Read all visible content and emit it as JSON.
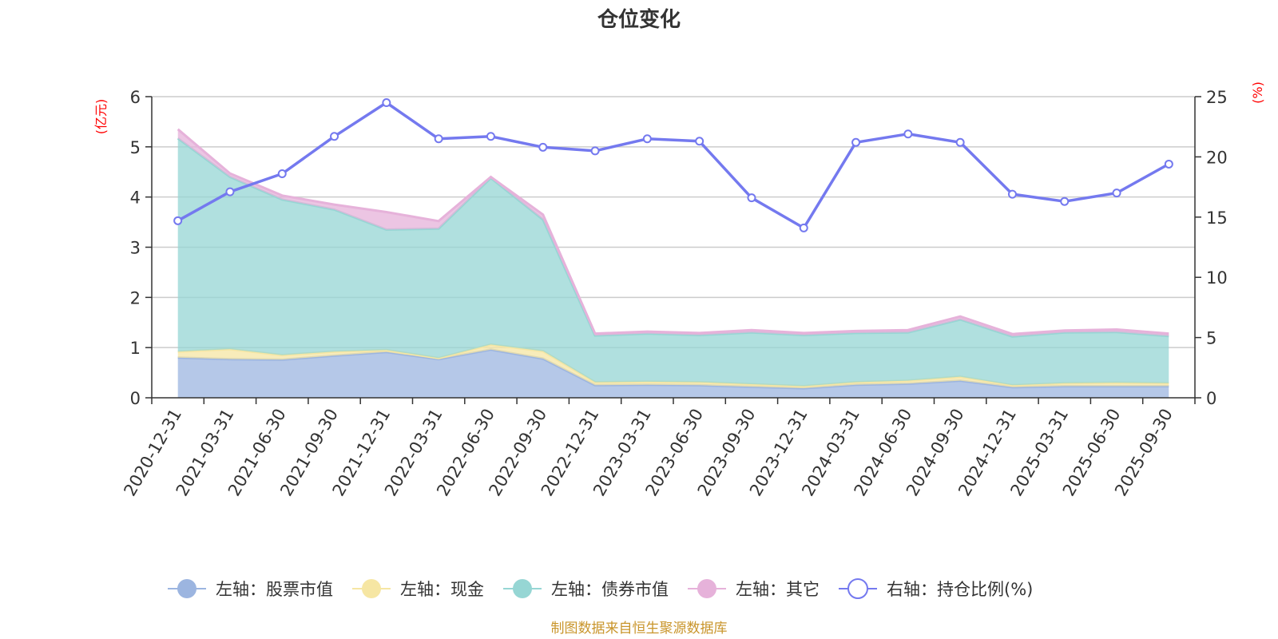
{
  "title": "仓位变化",
  "source": "制图数据来自恒生聚源数据库",
  "left_unit": "(亿元)",
  "right_unit": "(%)",
  "colors": {
    "stock": "#9cb5e0",
    "cash": "#f6e6a3",
    "bond": "#96d6d4",
    "other": "#e6b2da",
    "ratio": "#7479ef",
    "grid": "#cccccc",
    "axis": "#333333"
  },
  "legend": [
    {
      "key": "stock",
      "label": "左轴：股票市值"
    },
    {
      "key": "cash",
      "label": "左轴：现金"
    },
    {
      "key": "bond",
      "label": "左轴：债券市值"
    },
    {
      "key": "other",
      "label": "左轴：其它"
    },
    {
      "key": "ratio",
      "label": "右轴：持仓比例(%)"
    }
  ],
  "chart_data": {
    "type": "area",
    "categories": [
      "2020-12-31",
      "2021-03-31",
      "2021-06-30",
      "2021-09-30",
      "2021-12-31",
      "2022-03-31",
      "2022-06-30",
      "2022-09-30",
      "2022-12-31",
      "2023-03-31",
      "2023-06-30",
      "2023-09-30",
      "2023-12-31",
      "2024-03-31",
      "2024-06-30",
      "2024-09-30",
      "2024-12-31",
      "2025-03-31",
      "2025-06-30",
      "2025-09-30"
    ],
    "y_left": {
      "min": 0,
      "max": 6,
      "ticks": [
        0,
        1,
        2,
        3,
        4,
        5,
        6
      ]
    },
    "y_right": {
      "min": 0,
      "max": 25,
      "ticks": [
        0,
        5,
        10,
        15,
        20,
        25
      ]
    },
    "stacked_series": [
      {
        "key": "stock",
        "name": "左轴：股票市值",
        "values": [
          0.8,
          0.77,
          0.76,
          0.84,
          0.91,
          0.77,
          0.96,
          0.78,
          0.25,
          0.26,
          0.25,
          0.22,
          0.19,
          0.26,
          0.28,
          0.34,
          0.21,
          0.23,
          0.23,
          0.23
        ]
      },
      {
        "key": "cash",
        "name": "左轴：现金",
        "values": [
          0.12,
          0.2,
          0.09,
          0.08,
          0.04,
          0.02,
          0.1,
          0.15,
          0.06,
          0.06,
          0.06,
          0.05,
          0.04,
          0.05,
          0.06,
          0.08,
          0.04,
          0.06,
          0.07,
          0.06
        ]
      },
      {
        "key": "bond",
        "name": "左轴：债券市值",
        "values": [
          4.25,
          3.43,
          3.1,
          2.83,
          2.4,
          2.58,
          3.32,
          2.62,
          0.93,
          0.96,
          0.94,
          1.03,
          1.02,
          0.98,
          0.96,
          1.14,
          0.97,
          1.01,
          1.01,
          0.94
        ]
      },
      {
        "key": "other",
        "name": "左轴：其它",
        "values": [
          0.18,
          0.07,
          0.08,
          0.1,
          0.35,
          0.15,
          0.02,
          0.1,
          0.04,
          0.04,
          0.04,
          0.05,
          0.04,
          0.04,
          0.05,
          0.06,
          0.05,
          0.04,
          0.05,
          0.05
        ]
      }
    ],
    "line_series": {
      "key": "ratio",
      "name": "右轴：持仓比例(%)",
      "values": [
        14.7,
        17.1,
        18.6,
        21.7,
        24.5,
        21.5,
        21.7,
        20.8,
        20.5,
        21.5,
        21.3,
        16.6,
        14.1,
        21.2,
        21.9,
        21.2,
        16.9,
        16.3,
        17.0,
        19.4
      ]
    }
  }
}
